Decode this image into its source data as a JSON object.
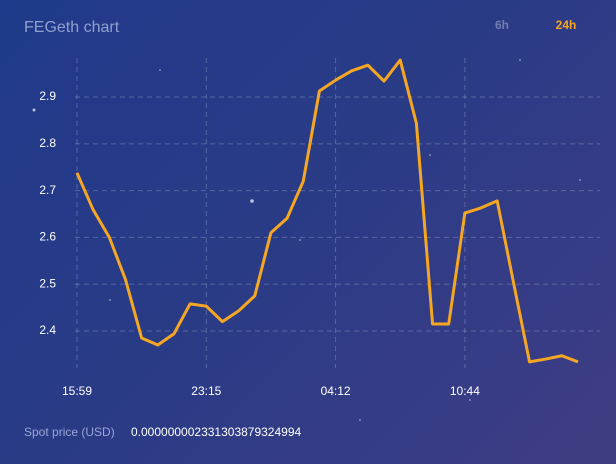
{
  "chart_data": {
    "type": "line",
    "title": "FEGeth chart",
    "ranges": [
      "6h",
      "24h"
    ],
    "active_range": "24h",
    "categories": [
      "15:59",
      null,
      null,
      null,
      null,
      null,
      null,
      null,
      "23:15",
      null,
      null,
      null,
      null,
      null,
      null,
      null,
      "04:12",
      null,
      null,
      null,
      null,
      null,
      null,
      null,
      "10:44",
      null,
      null,
      null,
      null,
      null,
      null,
      null
    ],
    "series": [
      {
        "color": "#f5a623",
        "values": [
          2.738,
          2.659,
          2.6,
          2.51,
          2.385,
          2.37,
          2.394,
          2.458,
          2.453,
          2.42,
          2.443,
          2.475,
          2.61,
          2.641,
          2.72,
          2.913,
          2.936,
          2.956,
          2.968,
          2.934,
          2.979,
          2.844,
          2.415,
          2.415,
          2.652,
          2.663,
          2.678,
          2.505,
          2.334,
          2.34,
          2.347,
          2.334
        ]
      }
    ],
    "ylim": [
      2.32,
      2.98
    ],
    "yticks": [
      2.4,
      2.5,
      2.6,
      2.7,
      2.8,
      2.9
    ],
    "grid": true,
    "footer_label": "Spot price (USD)",
    "footer_value": "0.000000002331303879324994"
  }
}
